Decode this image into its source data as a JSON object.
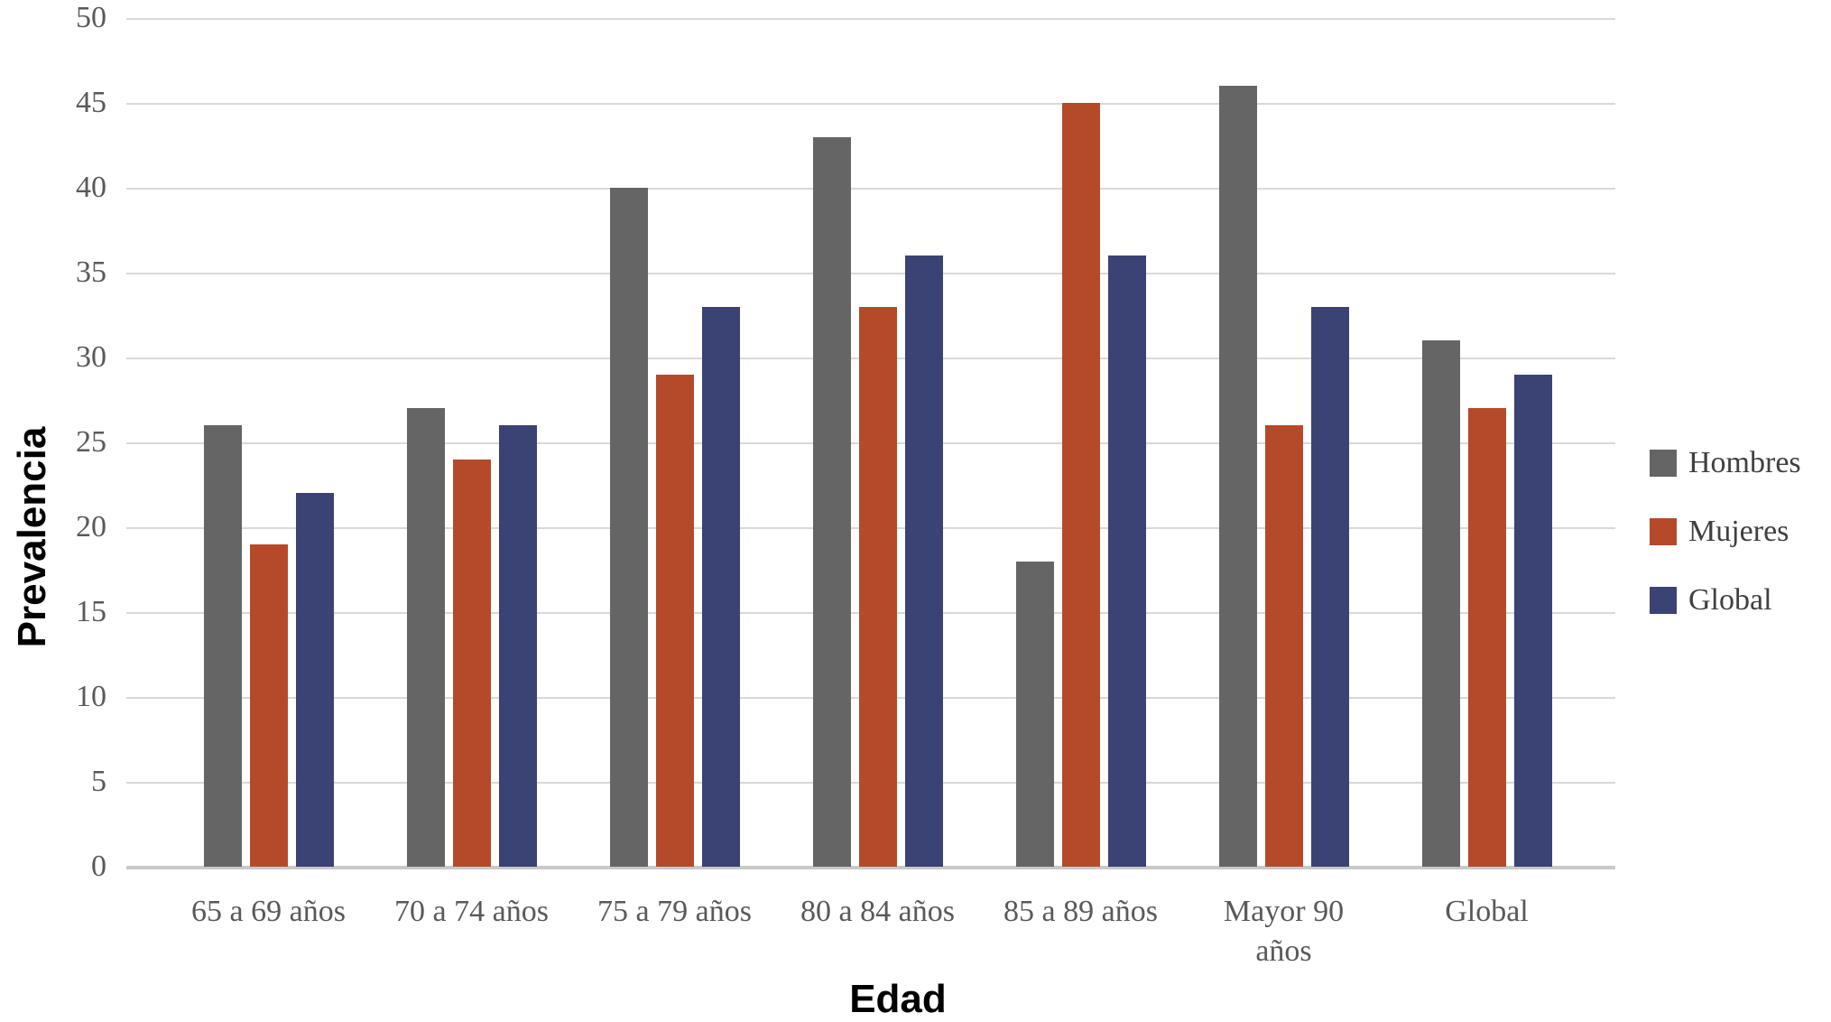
{
  "chart_data": {
    "type": "bar",
    "title": "",
    "categories": [
      "65 a 69 años",
      "70 a 74 años",
      "75 a 79 años",
      "80 a 84 años",
      "85 a 89 años",
      "Mayor 90\naños",
      "Global"
    ],
    "series": [
      {
        "name": "Hombres",
        "color": "#656565",
        "values": [
          26,
          27,
          40,
          43,
          18,
          46,
          31
        ]
      },
      {
        "name": "Mujeres",
        "color": "#B54A2B",
        "values": [
          19,
          24,
          29,
          33,
          45,
          26,
          27
        ]
      },
      {
        "name": "Global",
        "color": "#3B4274",
        "values": [
          22,
          26,
          33,
          36,
          36,
          33,
          29
        ]
      }
    ],
    "xlabel": "Edad",
    "ylabel": "Prevalencia",
    "ylim": [
      0,
      50
    ],
    "yticks": [
      50,
      45,
      40,
      35,
      30,
      25,
      20,
      15,
      10,
      5,
      0
    ],
    "grid": true,
    "legend_position": "right",
    "legend_entries": [
      "Hombres",
      "Mujeres",
      "Global"
    ]
  },
  "colors": {
    "background": "#ffffff",
    "gridline": "#D9D9D9",
    "axis_line": "#C9C9C9",
    "tick_text": "#595959",
    "legend_text": "#404040",
    "axis_title_text": "#000000"
  }
}
